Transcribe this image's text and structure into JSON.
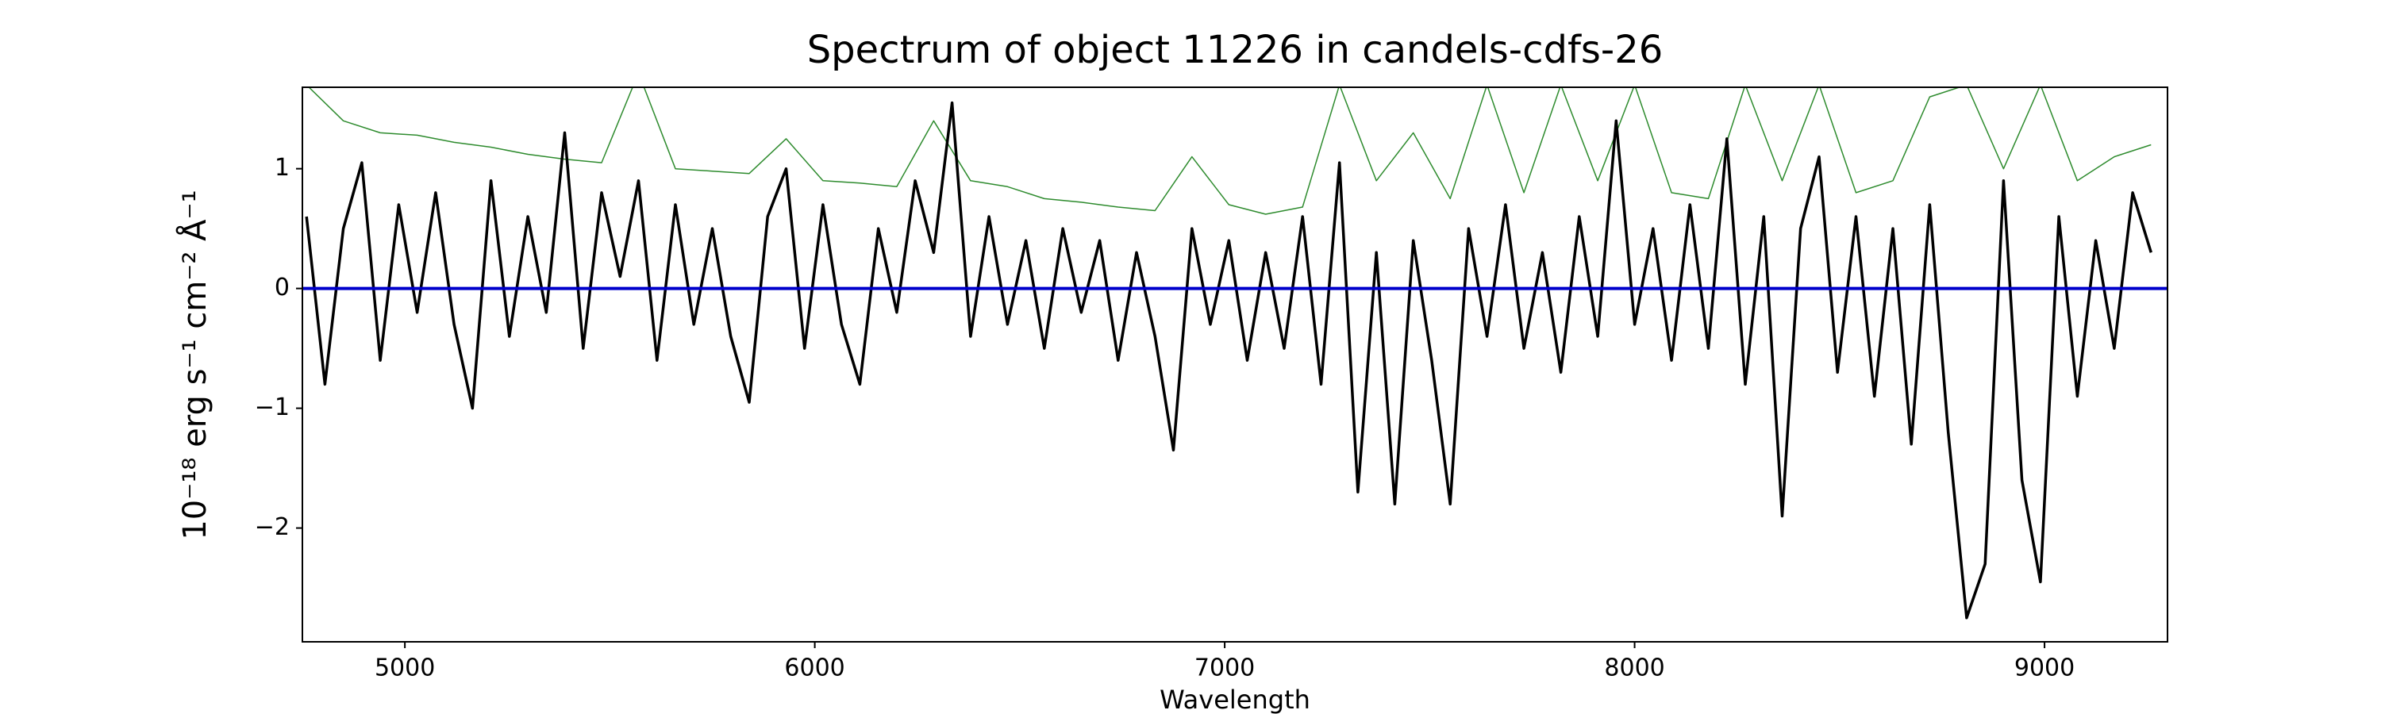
{
  "chart_data": {
    "type": "line",
    "title": "Spectrum of object 11226 in candels-cdfs-26",
    "x_label": "Wavelength",
    "y_label": "10⁻¹⁸ erg s⁻¹ cm⁻² Å⁻¹",
    "xlim": [
      4750,
      9300
    ],
    "ylim": [
      -2.95,
      1.68
    ],
    "xticks": [
      5000,
      6000,
      7000,
      8000,
      9000
    ],
    "yticks": [
      {
        "value": -2,
        "label": "−2"
      },
      {
        "value": -1,
        "label": "−1"
      },
      0,
      1
    ],
    "series": [
      {
        "color": "#2e8b2e",
        "width": 1.5,
        "x": [
          4760,
          4850,
          4940,
          5030,
          5120,
          5210,
          5300,
          5390,
          5480,
          5570,
          5660,
          5750,
          5840,
          5930,
          6020,
          6110,
          6200,
          6290,
          6380,
          6470,
          6560,
          6650,
          6740,
          6830,
          6920,
          7010,
          7100,
          7190,
          7280,
          7370,
          7460,
          7550,
          7640,
          7730,
          7820,
          7910,
          8000,
          8090,
          8180,
          8270,
          8360,
          8450,
          8540,
          8630,
          8720,
          8810,
          8900,
          8990,
          9080,
          9170,
          9260
        ],
        "values": [
          1.7,
          1.4,
          1.3,
          1.28,
          1.22,
          1.18,
          1.12,
          1.08,
          1.05,
          1.8,
          1.0,
          0.98,
          0.96,
          1.25,
          0.9,
          0.88,
          0.85,
          1.4,
          0.9,
          0.85,
          0.75,
          0.72,
          0.68,
          0.65,
          1.1,
          0.7,
          0.62,
          0.68,
          1.7,
          0.9,
          1.3,
          0.75,
          1.7,
          0.8,
          1.7,
          0.9,
          1.7,
          0.8,
          0.75,
          1.7,
          0.9,
          1.7,
          0.8,
          0.9,
          1.6,
          1.7,
          1.0,
          1.7,
          0.9,
          1.1,
          1.2
        ]
      },
      {
        "color": "#000000",
        "width": 3.5,
        "x": [
          4760,
          4805,
          4850,
          4895,
          4940,
          4985,
          5030,
          5075,
          5120,
          5165,
          5210,
          5255,
          5300,
          5345,
          5390,
          5435,
          5480,
          5525,
          5570,
          5615,
          5660,
          5705,
          5750,
          5795,
          5840,
          5885,
          5930,
          5975,
          6020,
          6065,
          6110,
          6155,
          6200,
          6245,
          6290,
          6335,
          6380,
          6425,
          6470,
          6515,
          6560,
          6605,
          6650,
          6695,
          6740,
          6785,
          6830,
          6875,
          6920,
          6965,
          7010,
          7055,
          7100,
          7145,
          7190,
          7235,
          7280,
          7325,
          7370,
          7415,
          7460,
          7505,
          7550,
          7595,
          7640,
          7685,
          7730,
          7775,
          7820,
          7865,
          7910,
          7955,
          8000,
          8045,
          8090,
          8135,
          8180,
          8225,
          8270,
          8315,
          8360,
          8405,
          8450,
          8495,
          8540,
          8585,
          8630,
          8675,
          8720,
          8765,
          8810,
          8855,
          8900,
          8945,
          8990,
          9035,
          9080,
          9125,
          9170,
          9215,
          9260
        ],
        "values": [
          0.6,
          -0.8,
          0.5,
          1.05,
          -0.6,
          0.7,
          -0.2,
          0.8,
          -0.3,
          -1.0,
          0.9,
          -0.4,
          0.6,
          -0.2,
          1.3,
          -0.5,
          0.8,
          0.1,
          0.9,
          -0.6,
          0.7,
          -0.3,
          0.5,
          -0.4,
          -0.95,
          0.6,
          1.0,
          -0.5,
          0.7,
          -0.3,
          -0.8,
          0.5,
          -0.2,
          0.9,
          0.3,
          1.55,
          -0.4,
          0.6,
          -0.3,
          0.4,
          -0.5,
          0.5,
          -0.2,
          0.4,
          -0.6,
          0.3,
          -0.4,
          -1.35,
          0.5,
          -0.3,
          0.4,
          -0.6,
          0.3,
          -0.5,
          0.6,
          -0.8,
          1.05,
          -1.7,
          0.3,
          -1.8,
          0.4,
          -0.6,
          -1.8,
          0.5,
          -0.4,
          0.7,
          -0.5,
          0.3,
          -0.7,
          0.6,
          -0.4,
          1.4,
          -0.3,
          0.5,
          -0.6,
          0.7,
          -0.5,
          1.25,
          -0.8,
          0.6,
          -1.9,
          0.5,
          1.1,
          -0.7,
          0.6,
          -0.9,
          0.5,
          -1.3,
          0.7,
          -1.2,
          -2.75,
          -2.3,
          0.9,
          -1.6,
          -2.45,
          0.6,
          -0.9,
          0.4,
          -0.5,
          0.8,
          0.3
        ]
      },
      {
        "color": "#0000cc",
        "width": 4,
        "x": [
          4750,
          9300
        ],
        "values": [
          0,
          0
        ]
      }
    ]
  }
}
